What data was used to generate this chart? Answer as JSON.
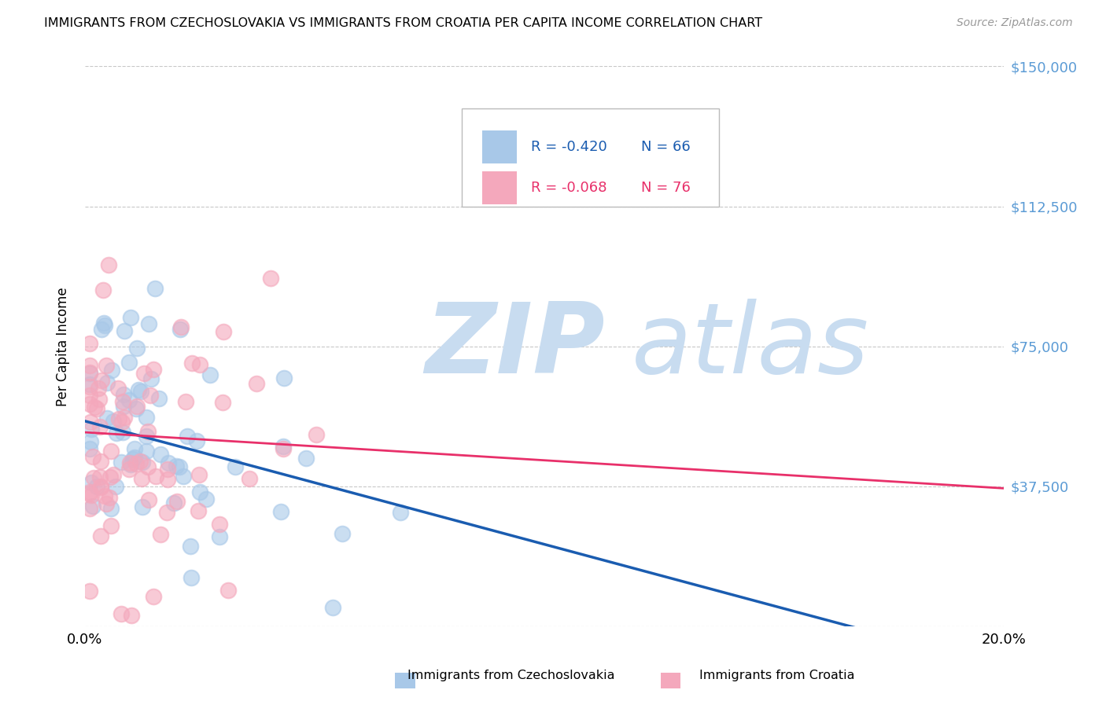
{
  "title": "IMMIGRANTS FROM CZECHOSLOVAKIA VS IMMIGRANTS FROM CROATIA PER CAPITA INCOME CORRELATION CHART",
  "source": "Source: ZipAtlas.com",
  "ylabel": "Per Capita Income",
  "xlim": [
    0.0,
    0.2
  ],
  "ylim": [
    0,
    150000
  ],
  "yticks": [
    0,
    37500,
    75000,
    112500,
    150000
  ],
  "ytick_labels": [
    "",
    "$37,500",
    "$75,000",
    "$112,500",
    "$150,000"
  ],
  "xticks": [
    0.0,
    0.05,
    0.1,
    0.15,
    0.2
  ],
  "xtick_labels": [
    "0.0%",
    "",
    "",
    "",
    "20.0%"
  ],
  "legend_R1": "R = -0.420",
  "legend_N1": "N = 66",
  "legend_R2": "R = -0.068",
  "legend_N2": "N = 76",
  "label1": "Immigrants from Czechoslovakia",
  "label2": "Immigrants from Croatia",
  "color1": "#A8C8E8",
  "color2": "#F4A8BC",
  "trend_color1": "#1A5CB0",
  "trend_color2": "#E8306A",
  "background_color": "#FFFFFF",
  "watermark_zip_color": "#C8DCF0",
  "watermark_atlas_color": "#C8DCF0",
  "title_fontsize": 11.5,
  "axis_label_color": "#5B9BD5",
  "grid_color": "#C8C8C8",
  "trend1_intercept": 55000,
  "trend1_slope": -330000,
  "trend2_intercept": 52000,
  "trend2_slope": -75000,
  "N1": 66,
  "N2": 76
}
